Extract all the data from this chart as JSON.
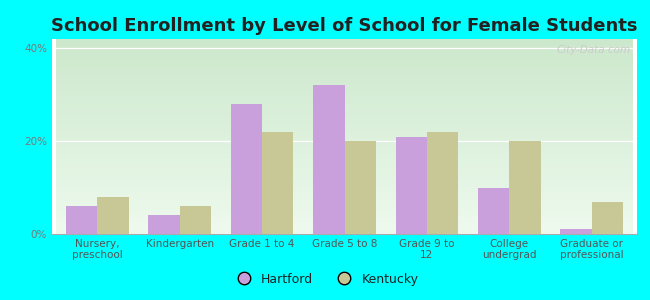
{
  "title": "School Enrollment by Level of School for Female Students",
  "categories": [
    "Nursery,\npreschool",
    "Kindergarten",
    "Grade 1 to 4",
    "Grade 5 to 8",
    "Grade 9 to\n12",
    "College\nundergrad",
    "Graduate or\nprofessional"
  ],
  "hartford": [
    6,
    4,
    28,
    32,
    21,
    10,
    1
  ],
  "kentucky": [
    8,
    6,
    22,
    20,
    22,
    20,
    7
  ],
  "hartford_color": "#c9a0dc",
  "kentucky_color": "#c8c896",
  "background_color": "#00ffff",
  "grad_top": "#cce8cc",
  "grad_bottom": "#eefaee",
  "ylim": [
    0,
    42
  ],
  "yticks": [
    0,
    20,
    40
  ],
  "ytick_labels": [
    "0%",
    "20%",
    "40%"
  ],
  "legend_hartford": "Hartford",
  "legend_kentucky": "Kentucky",
  "bar_width": 0.38,
  "title_fontsize": 13,
  "tick_fontsize": 7.5,
  "legend_fontsize": 9,
  "watermark": "City-Data.com"
}
